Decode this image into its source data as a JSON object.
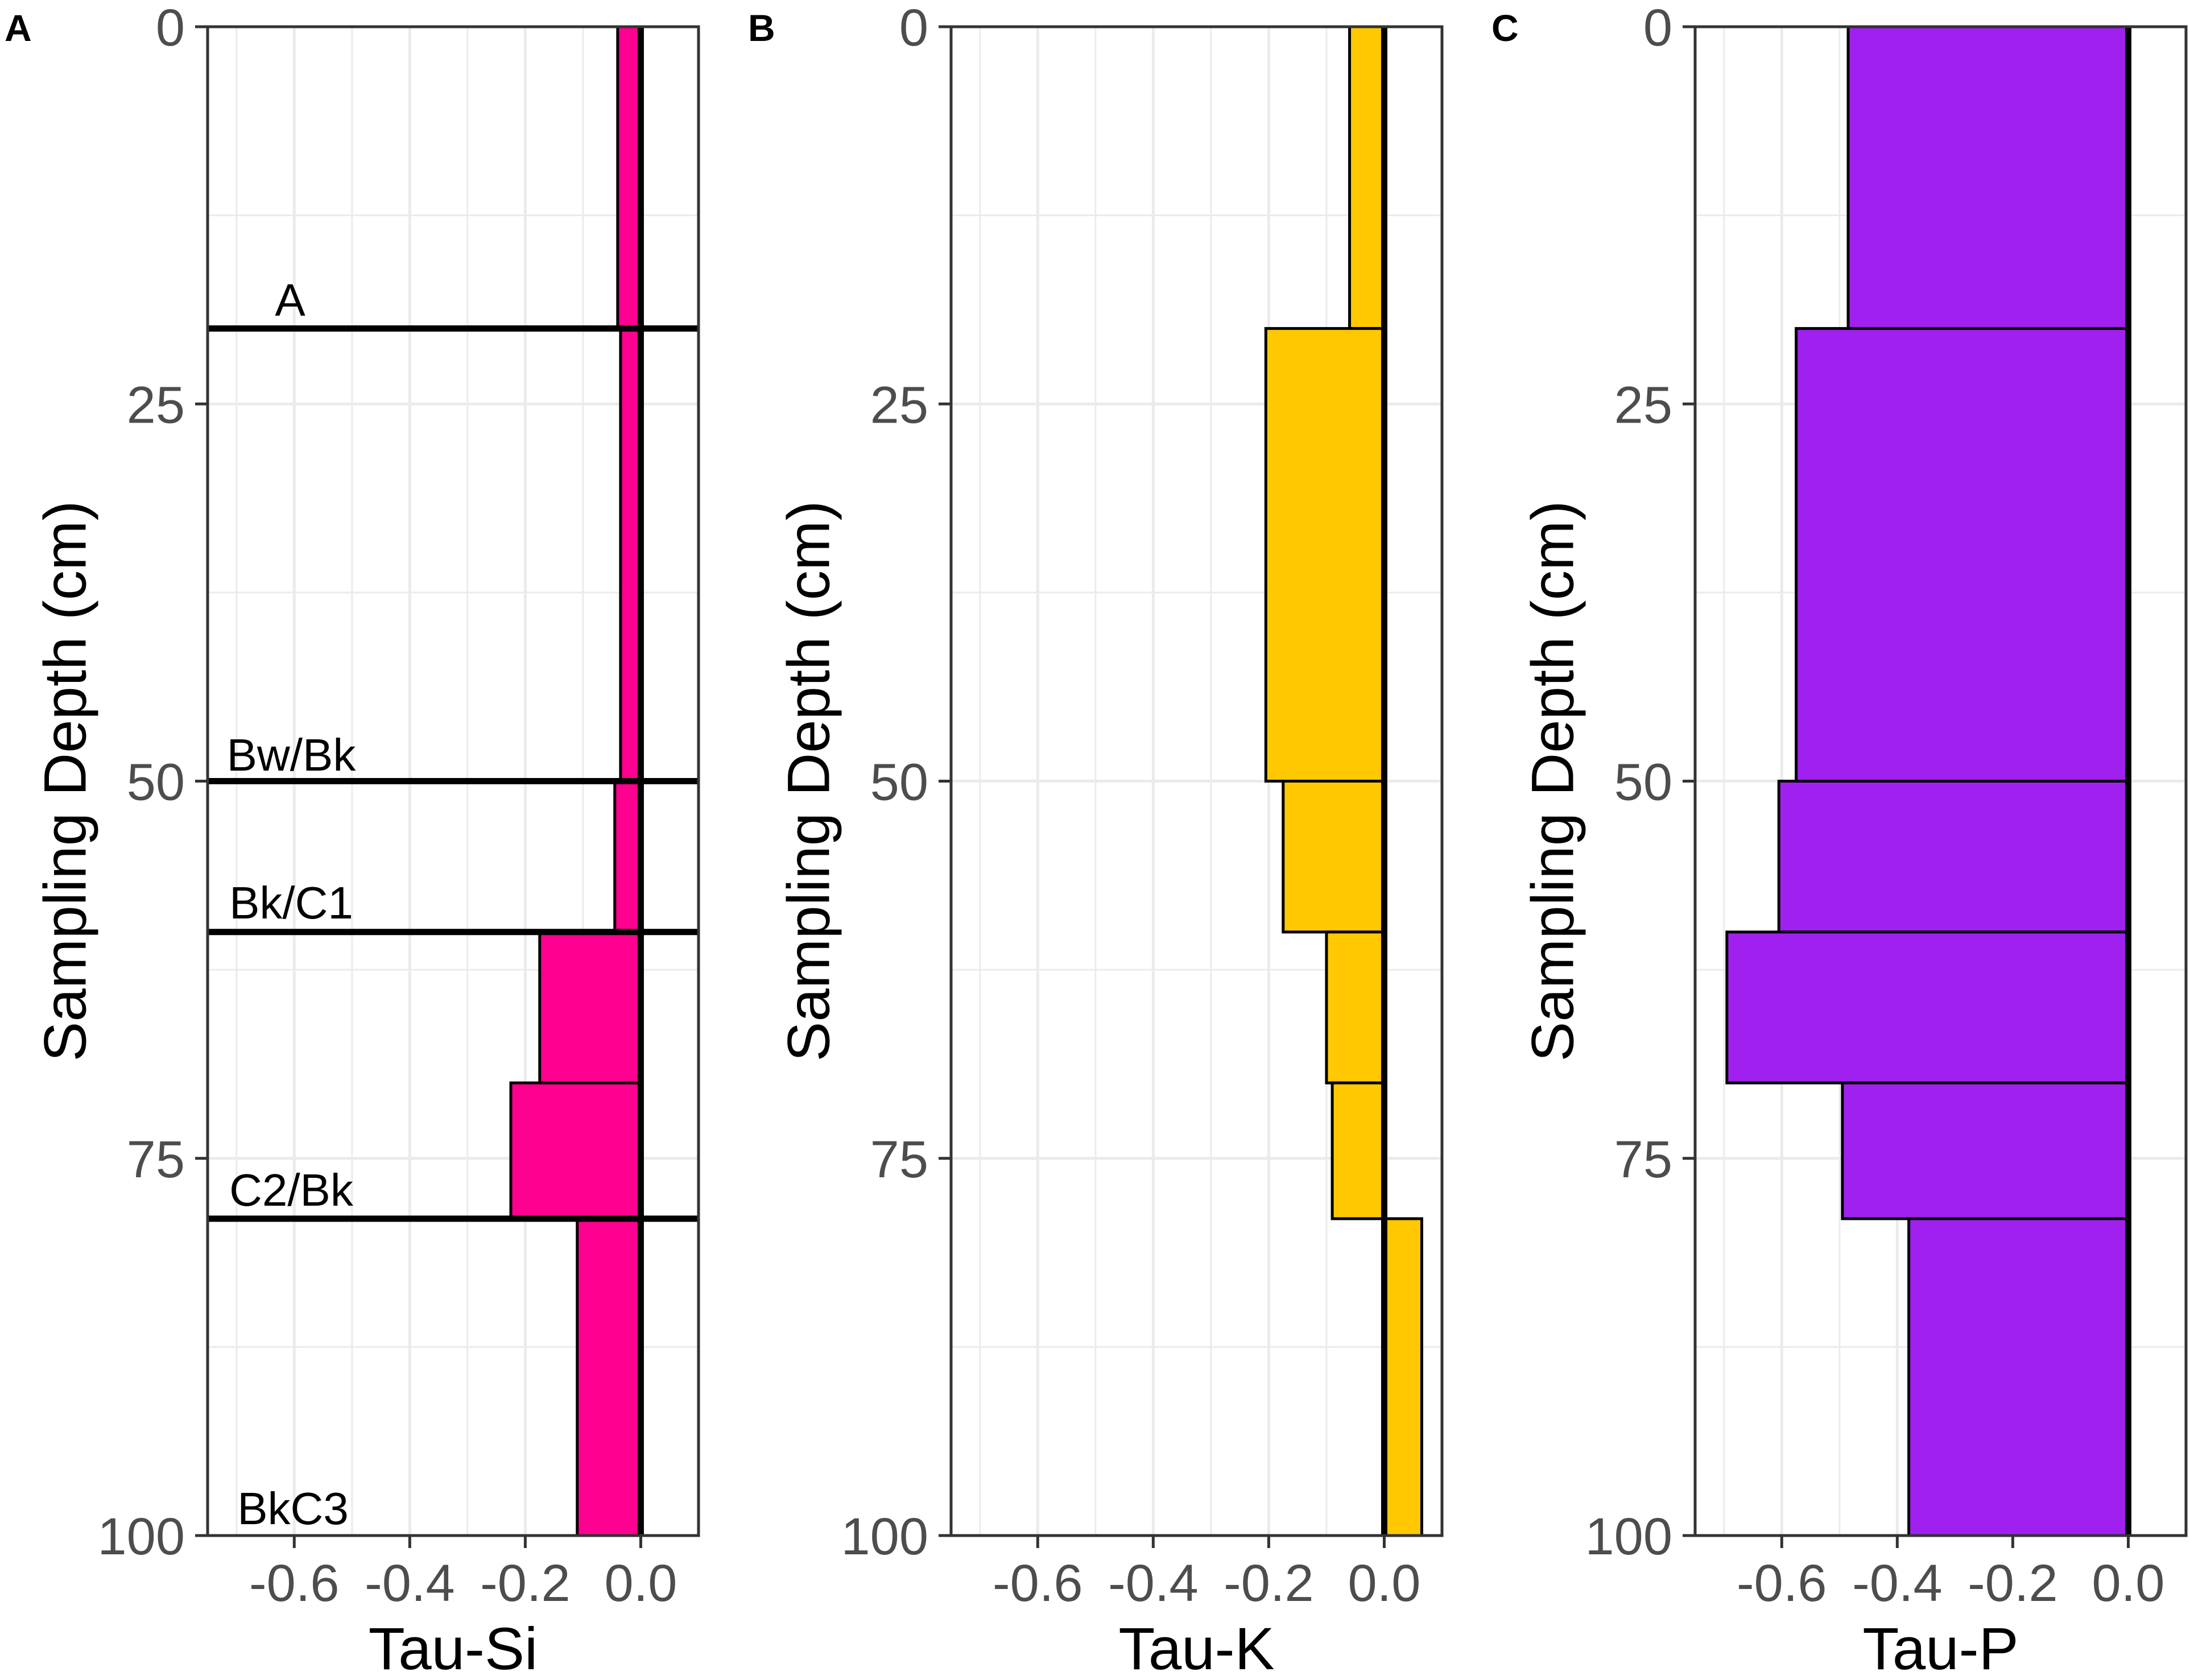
{
  "figure": {
    "horizons": [
      {
        "label": "A",
        "depth": 20
      },
      {
        "label": "Bw/Bk",
        "depth": 50
      },
      {
        "label": "Bk/C1",
        "depth": 60
      },
      {
        "label": "C2/Bk",
        "depth": 79
      },
      {
        "label": "BkC3"
      }
    ]
  },
  "chart_data": [
    {
      "type": "bar",
      "orientation": "horizontal",
      "panel_label": "A",
      "title": "",
      "xlabel": "Tau-Si",
      "ylabel": "Sampling Depth (cm)",
      "xlim": [
        -0.75,
        0.1
      ],
      "ylim": [
        100,
        0
      ],
      "xticks": [
        "-0.6",
        "-0.4",
        "-0.2",
        "0.0"
      ],
      "yticks": [
        "0",
        "25",
        "50",
        "75",
        "100"
      ],
      "grid": true,
      "color": "#ff0090",
      "bars": [
        {
          "depth_top": 0,
          "depth_bottom": 20,
          "value": -0.04
        },
        {
          "depth_top": 20,
          "depth_bottom": 50,
          "value": -0.035
        },
        {
          "depth_top": 50,
          "depth_bottom": 60,
          "value": -0.045
        },
        {
          "depth_top": 60,
          "depth_bottom": 70,
          "value": -0.175
        },
        {
          "depth_top": 70,
          "depth_bottom": 79,
          "value": -0.225
        },
        {
          "depth_top": 79,
          "depth_bottom": 100,
          "value": -0.11
        }
      ]
    },
    {
      "type": "bar",
      "orientation": "horizontal",
      "panel_label": "B",
      "title": "",
      "xlabel": "Tau-K",
      "ylabel": "Sampling Depth (cm)",
      "xlim": [
        -0.75,
        0.1
      ],
      "ylim": [
        100,
        0
      ],
      "xticks": [
        "-0.6",
        "-0.4",
        "-0.2",
        "0.0"
      ],
      "yticks": [
        "0",
        "25",
        "50",
        "75",
        "100"
      ],
      "grid": true,
      "color": "#ffc800",
      "bars": [
        {
          "depth_top": 0,
          "depth_bottom": 20,
          "value": -0.06
        },
        {
          "depth_top": 20,
          "depth_bottom": 50,
          "value": -0.205
        },
        {
          "depth_top": 50,
          "depth_bottom": 60,
          "value": -0.175
        },
        {
          "depth_top": 60,
          "depth_bottom": 70,
          "value": -0.1
        },
        {
          "depth_top": 70,
          "depth_bottom": 79,
          "value": -0.09
        },
        {
          "depth_top": 79,
          "depth_bottom": 100,
          "value": 0.065
        }
      ]
    },
    {
      "type": "bar",
      "orientation": "horizontal",
      "panel_label": "C",
      "title": "",
      "xlabel": "Tau-P",
      "ylabel": "Sampling Depth (cm)",
      "xlim": [
        -0.75,
        0.1
      ],
      "ylim": [
        100,
        0
      ],
      "xticks": [
        "-0.6",
        "-0.4",
        "-0.2",
        "0.0"
      ],
      "yticks": [
        "0",
        "25",
        "50",
        "75",
        "100"
      ],
      "grid": true,
      "color": "#a020f0",
      "bars": [
        {
          "depth_top": 0,
          "depth_bottom": 20,
          "value": -0.485
        },
        {
          "depth_top": 20,
          "depth_bottom": 50,
          "value": -0.575
        },
        {
          "depth_top": 50,
          "depth_bottom": 60,
          "value": -0.605
        },
        {
          "depth_top": 60,
          "depth_bottom": 70,
          "value": -0.695
        },
        {
          "depth_top": 70,
          "depth_bottom": 79,
          "value": -0.495
        },
        {
          "depth_top": 79,
          "depth_bottom": 100,
          "value": -0.38
        }
      ]
    }
  ]
}
